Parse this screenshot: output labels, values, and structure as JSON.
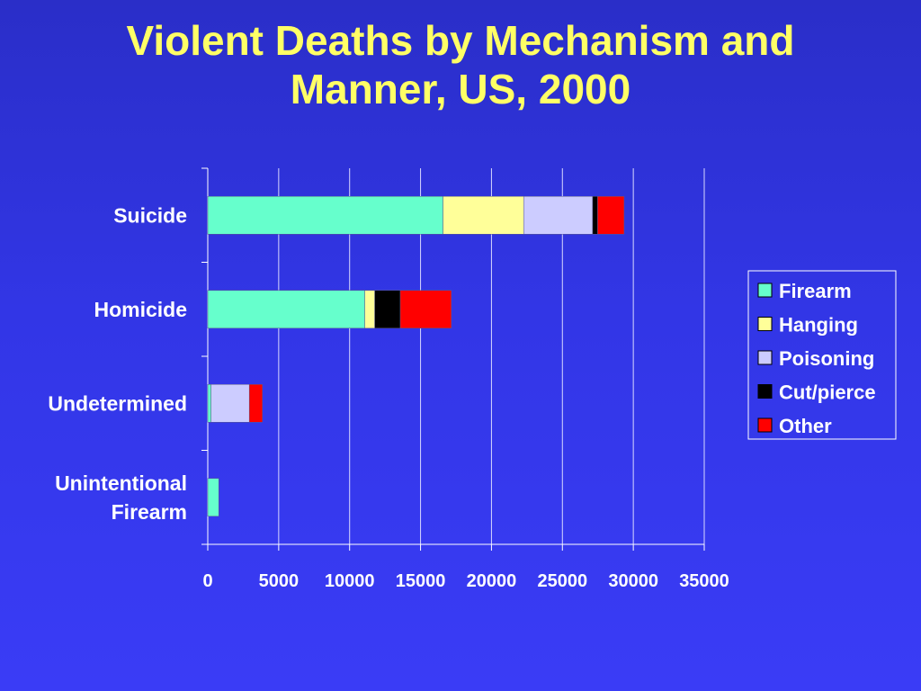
{
  "page": {
    "title_line1": "Violent Deaths by Mechanism and",
    "title_line2": "Manner, US, 2000",
    "background": "#3236e6",
    "title_color": "#ffff66"
  },
  "chart_data": {
    "type": "bar",
    "orientation": "horizontal",
    "stacked": true,
    "title": "Violent Deaths by Mechanism and Manner, US, 2000",
    "categories": [
      "Suicide",
      "Homicide",
      "Undetermined",
      "Unintentional Firearm"
    ],
    "category_lines": [
      [
        "Suicide"
      ],
      [
        "Homicide"
      ],
      [
        "Undetermined"
      ],
      [
        "Unintentional",
        "Firearm"
      ]
    ],
    "series": [
      {
        "name": "Firearm",
        "color": "#66ffcc",
        "values": [
          16586,
          11071,
          230,
          776
        ]
      },
      {
        "name": "Hanging",
        "color": "#ffff99",
        "values": [
          5688,
          700,
          0,
          0
        ]
      },
      {
        "name": "Poisoning",
        "color": "#ccccff",
        "values": [
          4859,
          0,
          2700,
          0
        ]
      },
      {
        "name": "Cut/pierce",
        "color": "#000000",
        "values": [
          350,
          1800,
          0,
          0
        ]
      },
      {
        "name": "Other",
        "color": "#ff0000",
        "values": [
          1867,
          3600,
          920,
          0
        ]
      }
    ],
    "xlim": [
      0,
      35000
    ],
    "xticks": [
      "0",
      "5000",
      "10000",
      "15000",
      "20000",
      "25000",
      "30000",
      "35000"
    ],
    "xlabel": "",
    "ylabel": "",
    "grid": "vertical",
    "legend_position": "right"
  }
}
